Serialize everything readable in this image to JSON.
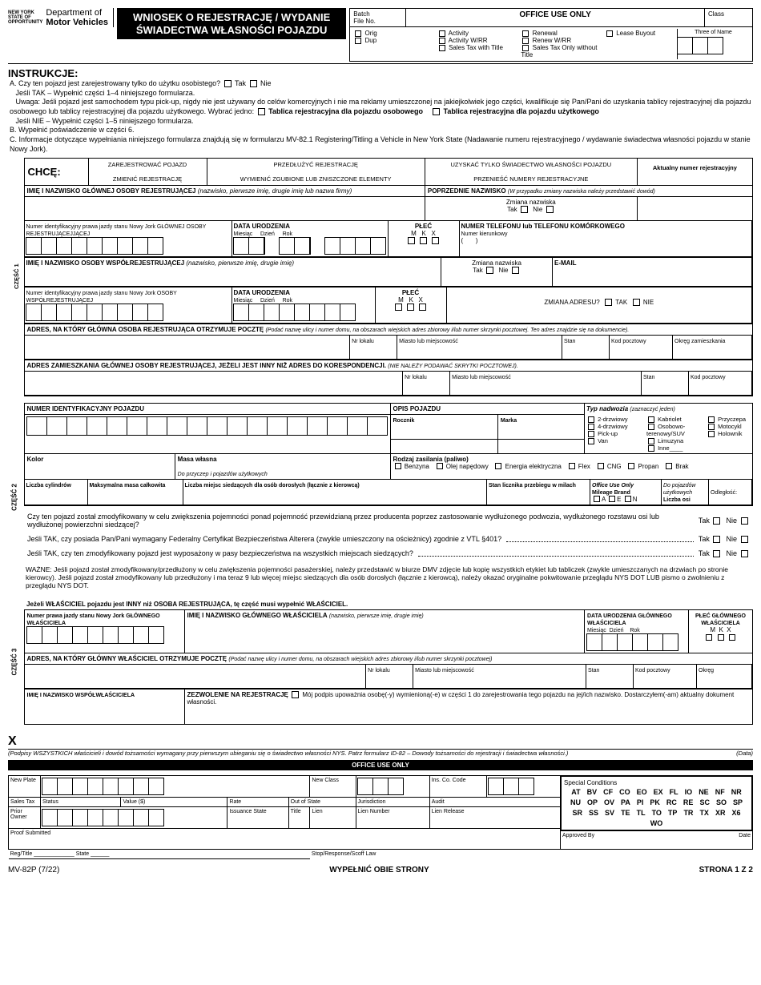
{
  "header": {
    "ny_state": "NEW YORK\nSTATE OF\nOPPORTUNITY",
    "dept": "Department of",
    "mv": "Motor Vehicles",
    "title1": "WNIOSEK O REJESTRACJĘ / WYDANIE",
    "title2": "ŚWIADECTWA WŁASNOŚCI POJAZDU",
    "batch": "Batch",
    "fileno": "File No.",
    "office_use": "OFFICE USE ONLY",
    "class": "Class",
    "orig": "Orig",
    "dup": "Dup",
    "activity": "Activity",
    "activity_wrr": "Activity W/RR",
    "sales_tax_title": "Sales Tax with Title",
    "renewal": "Renewal",
    "renew_wrr": "Renew W/RR",
    "lease_buyout": "Lease Buyout",
    "sales_tax_only": "Sales Tax Only without Title",
    "three_name": "Three of Name"
  },
  "instr": {
    "heading": "INSTRUKCJE:",
    "a": "A. Czy ten pojazd jest zarejestrowany tylko do użytku osobistego?",
    "tak": "Tak",
    "nie": "Nie",
    "a_yes": "Jeśli TAK – Wypełnić części 1–4 niniejszego formularza.",
    "uwaga": "Uwaga: Jeśli pojazd jest samochodem typu pick-up, nigdy nie jest używany do celów komercyjnych i nie ma reklamy umieszczonej na jakiejkolwiek jego części, kwalifikuje się Pan/Pani do uzyskania tablicy rejestracyjnej dla pojazdu osobowego lub tablicy rejestracyjnej dla pojazdu użytkowego. Wybrać jedno:",
    "tab_osob": "Tablica rejestracyjna dla pojazdu osobowego",
    "tab_uzyt": "Tablica rejestracyjna dla pojazdu użytkowego",
    "a_no": "Jeśli NIE – Wypełnić części 1–5 niniejszego formularza.",
    "b": "B. Wypełnić poświadczenie w części 6.",
    "c": "C. Informacje dotyczące wypełniania niniejszego formularza znajdują się w formularzu MV-82.1 Registering/Titling a Vehicle in New York State (Nadawanie numeru rejestracyjnego / wydawanie świadectwa własności pojazdu w stanie Nowy Jork)."
  },
  "chce": {
    "label": "CHCĘ:",
    "o1": "ZAREJESTROWAĆ POJAZD",
    "o2": "ZMIENIĆ REJESTRACJĘ",
    "o3": "PRZEDŁUŻYĆ REJESTRACJĘ",
    "o4": "WYMIENIĆ ZGUBIONE LUB ZNISZCZONE ELEMENTY",
    "o5": "UZYSKAĆ TYLKO ŚWIADECTWO WŁASNOŚCI POJAZDU",
    "o6": "PRZENIEŚĆ NUMERY REJESTRACYJNE",
    "regnum": "Aktualny numer rejestracyjny"
  },
  "s1": {
    "label": "CZĘŚĆ 1",
    "name_primary": "IMIĘ I NAZWISKO GŁÓWNEJ OSOBY REJESTRUJĄCEJ",
    "name_hint": "(nazwisko, pierwsze imię, drugie imię lub nazwa firmy)",
    "prev_name": "POPRZEDNIE NAZWISKO",
    "prev_name_hint": "(W przypadku zmiany nazwiska należy przedstawić dowód)",
    "name_change": "Zmiana nazwiska",
    "tak": "Tak",
    "nie": "Nie",
    "dl_primary": "Numer identyfikacyjny prawa jazdy stanu Nowy Jork GŁÓWNEJ OSOBY REJESTRUJĄCEJJĄCEJ",
    "dob": "DATA URODZENIA",
    "month": "Miesiąc",
    "day": "Dzień",
    "year": "Rok",
    "sex": "PŁEĆ",
    "m": "M",
    "k": "K",
    "x": "X",
    "phone": "NUMER TELEFONU lub TELEFONU KOMÓRKOWEGO",
    "area": "Numer kierunkowy",
    "email": "E-MAIL",
    "name_co": "IMIĘ I NAZWISKO OSOBY WSPÓŁREJESTRUJĄCEJ",
    "name_co_hint": "(nazwisko, pierwsze imię, drugie imię)",
    "dl_co": "Numer identyfikacyjny prawa jazdy stanu Nowy Jork OSOBY WSPÓŁREJESTRUJĄCEJ",
    "addr_change": "ZMIANA ADRESU?",
    "addr_mail": "ADRES, NA KTÓRY GŁÓWNA OSOBA REJESTRUJĄCA OTRZYMUJE POCZTĘ",
    "addr_mail_hint": "(Podać nazwę ulicy i numer domu, na obszarach wiejskich adres zbiorowy i/lub numer skrzynki pocztowej. Ten adres znajdzie się na dokumencie).",
    "apt": "Nr lokalu",
    "city": "Miasto lub miejscowość",
    "state": "Stan",
    "zip": "Kod pocztowy",
    "county": "Okręg zamieszkania",
    "addr_res": "ADRES ZAMIESZKANIA GŁÓWNEJ OSOBY REJESTRUJĄCEJ, JEŻELI JEST INNY NIŻ ADRES DO KORESPONDENCJI.",
    "addr_res_hint": "(NIE NALEŻY PODAWAĆ SKRYTKI POCZTOWEJ)."
  },
  "s2": {
    "label": "CZĘŚĆ 2",
    "vin": "NUMER IDENTYFIKACYJNY POJAZDU",
    "desc": "OPIS POJAZDU",
    "body": "Typ nadwozia",
    "body_hint": "(zaznaczyć jeden)",
    "year": "Rocznik",
    "make": "Marka",
    "b1": "2-drzwiowy",
    "b2": "Kabriolet",
    "b3": "Przyczepa",
    "b4": "4-drzwiowy",
    "b5": "Osobowo-terenowy/SUV",
    "b6": "Motocykl",
    "b7": "Pick-up",
    "b8": "Limuzyna",
    "b9": "Holownik",
    "b10": "Van",
    "b11": "Inne",
    "color": "Kolor",
    "weight": "Masa własna",
    "fuel": "Rodzaj zasilania (paliwo)",
    "f1": "Benzyna",
    "f2": "Olej napędowy",
    "f3": "Energia elektryczna",
    "f4": "Flex",
    "f5": "CNG",
    "f6": "Propan",
    "f7": "Brak",
    "trailer_note": "Do przyczep i pojazdów użytkowych",
    "cyl": "Liczba cylindrów",
    "gvw": "Maksymalna masa całkowita",
    "seats": "Liczba miejsc siedzących dla osób dorosłych (łącznie z kierowcą)",
    "odo": "Stan licznika przebiegu w milach",
    "office": "Office Use Only",
    "mileage": "Mileage Brand",
    "ma": "A",
    "me": "E",
    "mn": "N",
    "comm": "Do pojazdów użytkowych",
    "axles": "Liczba osi",
    "dist": "Odległość:",
    "q1": "Czy ten pojazd został zmodyfikowany w celu zwiększenia pojemności ponad pojemność przewidzianą przez producenta poprzez zastosowanie wydłużonego podwozia, wydłużonego rozstawu osi lub wydłużonej powierzchni siedzącej?",
    "q2": "Jeśli TAK, czy posiada Pan/Pani wymagany Federalny Certyfikat Bezpieczeństwa Alterera (zwykle umieszczony na ościeżnicy) zgodnie z VTL §401?",
    "q3": "Jeśli TAK, czy ten zmodyfikowany pojazd jest wyposażony w pasy bezpieczeństwa na wszystkich miejscach siedzących?",
    "tak": "Tak",
    "nie": "Nie",
    "wazne": "WAŻNE: Jeśli pojazd został zmodyfikowany/przedłużony w celu zwiększenia pojemności pasażerskiej, należy przedstawić w biurze DMV zdjęcie lub kopię wszystkich etykiet lub tabliczek (zwykle umieszczanych na drzwiach po stronie kierowcy). Jeśli pojazd został zmodyfikowany lub przedłużony i ma teraz 9 lub więcej miejsc siedzących dla osób dorosłych (łącznie z kierowcą), należy okazać oryginalne pokwitowanie przeglądu NYS DOT LUB pismo o zwolnieniu z przeglądu NYS DOT."
  },
  "s3": {
    "label": "CZĘŚĆ 3",
    "owner_diff": "Jeżeli WŁAŚCICIEL pojazdu jest INNY niż OSOBA REJESTRUJĄCA, tę część musi wypełnić WŁAŚCICIEL.",
    "dl_owner": "Numer prawa jazdy stanu Nowy Jork GŁÓWNEGO WŁAŚCICIELA",
    "name_owner": "IMIĘ I NAZWISKO GŁÓWNEGO WŁAŚCICIELA",
    "name_owner_hint": "(nazwisko, pierwsze imię, drugie imię)",
    "dob_owner": "DATA URODZENIA GŁÓWNEGO WŁAŚCICIELA",
    "month": "Miesiąc",
    "day": "Dzień",
    "year": "Rok",
    "sex_owner": "PŁEĆ GŁÓWNEGO WŁAŚCICIELA",
    "m": "M",
    "k": "K",
    "x": "X",
    "addr_owner": "ADRES, NA KTÓRY GŁÓWNY WŁAŚCICIEL OTRZYMUJE POCZTĘ",
    "addr_owner_hint": "(Podać nazwę ulicy i numer domu, na obszarach wiejskich adres zbiorowy i/lub numer skrzynki pocztowej)",
    "apt": "Nr lokalu",
    "city": "Miasto lub miejscowość",
    "state": "Stan",
    "zip": "Kod pocztowy",
    "county": "Okręg",
    "co_owner": "IMIĘ I NAZWISKO WSPÓŁWŁAŚCICIELA",
    "auth": "ZEZWOLENIE NA REJESTRACJĘ",
    "auth_text": "Mój podpis upoważnia osobę(-y) wymienioną(-e) w części 1 do zarejestrowania tego pojazdu na jej/ich nazwisko. Dostarczyłem(-am) aktualny dokument własności.",
    "sig_note": "(Podpisy WSZYSTKICH właścicieli i dowód tożsamości wymagany przy pierwszym ubieganiu się o świadectwo własności NYS. Patrz formularz ID-82 – Dowody tożsamości do rejestracji i świadectwa własności.)",
    "data": "(Data)"
  },
  "footer": {
    "office": "OFFICE USE ONLY",
    "new_plate": "New Plate",
    "new_class": "New Class",
    "ins_co": "Ins. Co. Code",
    "special": "Special Conditions",
    "sales_tax": "Sales Tax",
    "status": "Status",
    "value": "Value ($)",
    "rate": "Rate",
    "out_state": "Out of State",
    "jurisdiction": "Jurisdiction",
    "audit": "Audit",
    "prior": "Prior Owner",
    "issuance": "Issuance State",
    "title": "Title",
    "lien": "Lien",
    "lien_num": "Lien Number",
    "lien_rel": "Lien Release",
    "proof": "Proof Submitted",
    "approved": "Approved By",
    "date": "Date",
    "reg_title": "Reg/Title",
    "state": "State",
    "stop": "Stop/Response/Scoff Law",
    "codes": [
      "AT",
      "BV",
      "CF",
      "CO",
      "EO",
      "EX",
      "FL",
      "IO",
      "NE",
      "NF",
      "NR",
      "NU",
      "OP",
      "OV",
      "PA",
      "PI",
      "PK",
      "RC",
      "RE",
      "SC",
      "SO",
      "SP",
      "SR",
      "SS",
      "SV",
      "TE",
      "TL",
      "TO",
      "TP",
      "TR",
      "TX",
      "XR",
      "X6",
      "WO"
    ]
  },
  "page": {
    "form": "MV-82P (7/22)",
    "both": "WYPEŁNIĆ OBIE STRONY",
    "pg": "STRONA 1 Z 2"
  }
}
